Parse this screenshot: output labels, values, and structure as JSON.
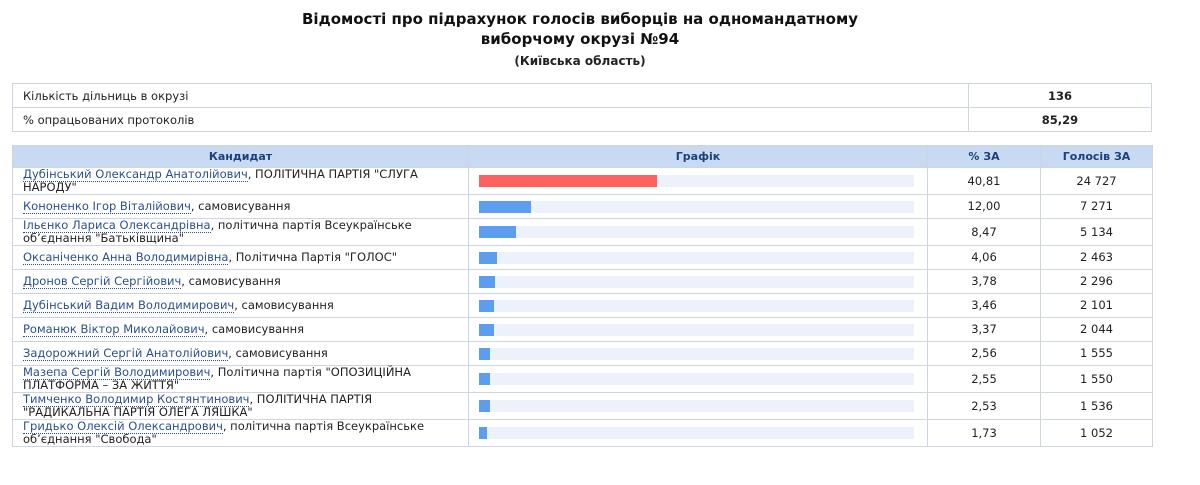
{
  "header": {
    "title_line1": "Відомості про підрахунок голосів виборців на одномандатному",
    "title_line2": "виборчому окрузі №94",
    "subtitle": "(Київська область)"
  },
  "summary": [
    {
      "label": "Кількість дільниць в окрузі",
      "value": "136"
    },
    {
      "label": "% опрацьованих протоколів",
      "value": "85,29"
    }
  ],
  "table": {
    "columns": [
      "Кандидат",
      "Графік",
      "% ЗА",
      "Голосів ЗА"
    ],
    "percent_max": 100,
    "rows": [
      {
        "name": "Дубінський Олександр Анатолійович",
        "party": ", ПОЛІТИЧНА ПАРТІЯ \"СЛУГА НАРОДУ\"",
        "percent": {
          "value": 40.81,
          "label": "40,81"
        },
        "votes": "24 727",
        "bar_color": "#ff6161"
      },
      {
        "name": "Кононенко Ігор Віталійович",
        "party": ", самовисування",
        "percent": {
          "value": 12.0,
          "label": "12,00"
        },
        "votes": "7 271",
        "bar_color": "#5c9df0"
      },
      {
        "name": "Ільєнко Лариса Олександрівна",
        "party": ", політична партія Всеукраїнське об’єднання \"Батьківщина\"",
        "percent": {
          "value": 8.47,
          "label": "8,47"
        },
        "votes": "5 134",
        "bar_color": "#5c9df0"
      },
      {
        "name": "Оксаніченко Анна Володимирівна",
        "party": ", Політична Партія \"ГОЛОС\"",
        "percent": {
          "value": 4.06,
          "label": "4,06"
        },
        "votes": "2 463",
        "bar_color": "#5c9df0"
      },
      {
        "name": "Дронов Сергій Сергійович",
        "party": ", самовисування",
        "percent": {
          "value": 3.78,
          "label": "3,78"
        },
        "votes": "2 296",
        "bar_color": "#5c9df0"
      },
      {
        "name": "Дубінський Вадим Володимирович",
        "party": ", самовисування",
        "percent": {
          "value": 3.46,
          "label": "3,46"
        },
        "votes": "2 101",
        "bar_color": "#5c9df0"
      },
      {
        "name": "Романюк Віктор Миколайович",
        "party": ", самовисування",
        "percent": {
          "value": 3.37,
          "label": "3,37"
        },
        "votes": "2 044",
        "bar_color": "#5c9df0"
      },
      {
        "name": "Задорожний Сергій Анатолійович",
        "party": ", самовисування",
        "percent": {
          "value": 2.56,
          "label": "2,56"
        },
        "votes": "1 555",
        "bar_color": "#5c9df0"
      },
      {
        "name": "Мазепа Сергій Володимирович",
        "party": ", Політична партія \"ОПОЗИЦІЙНА ПЛАТФОРМА – ЗА ЖИТТЯ\"",
        "percent": {
          "value": 2.55,
          "label": "2,55"
        },
        "votes": "1 550",
        "bar_color": "#5c9df0"
      },
      {
        "name": "Тимченко Володимир Костянтинович",
        "party": ", ПОЛІТИЧНА ПАРТІЯ \"РАДИКАЛЬНА ПАРТІЯ ОЛЕГА ЛЯШКА\"",
        "percent": {
          "value": 2.53,
          "label": "2,53"
        },
        "votes": "1 536",
        "bar_color": "#5c9df0"
      },
      {
        "name": "Гридько Олексій Олександрович",
        "party": ", політична партія Всеукраїнське об’єднання \"Свобода\"",
        "percent": {
          "value": 1.73,
          "label": "1,73"
        },
        "votes": "1 052",
        "bar_color": "#5c9df0"
      }
    ]
  }
}
